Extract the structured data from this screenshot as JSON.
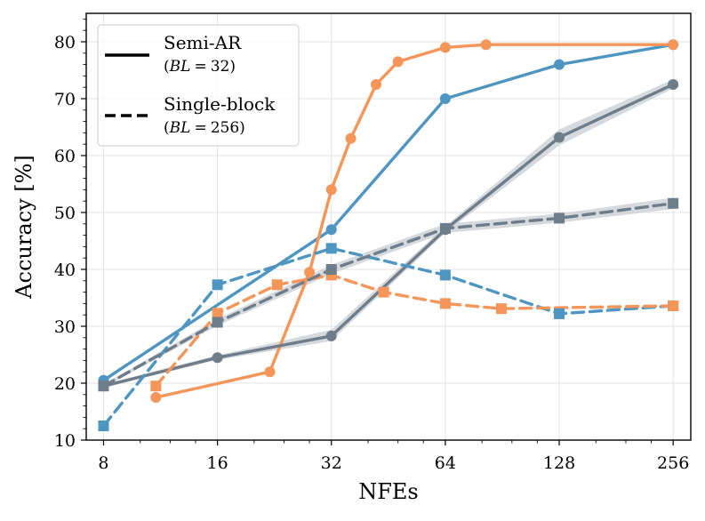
{
  "chart_data": {
    "type": "line",
    "title": "",
    "xlabel": "NFEs",
    "ylabel": "Accuracy [%]",
    "xscale": "log2",
    "xlim": [
      7.2,
      285
    ],
    "ylim": [
      10,
      85
    ],
    "xticks": [
      8,
      16,
      32,
      64,
      128,
      256
    ],
    "xtick_labels": [
      "8",
      "16",
      "32",
      "64",
      "128",
      "256"
    ],
    "yticks": [
      10,
      20,
      30,
      40,
      50,
      60,
      70,
      80
    ],
    "ytick_labels": [
      "10",
      "20",
      "30",
      "40",
      "50",
      "60",
      "70",
      "80"
    ],
    "grid": true,
    "legend": {
      "placement": "top-left",
      "entries": [
        {
          "label": "Semi-AR",
          "sub_label": "(BL = 32)",
          "sub_var": "BL",
          "sub_eq": "=",
          "sub_val": "32)",
          "style": "solid"
        },
        {
          "label": "Single-block",
          "sub_label": "(BL = 256)",
          "sub_var": "BL",
          "sub_eq": "=",
          "sub_val": "256)",
          "style": "dashed"
        }
      ]
    },
    "colors": {
      "orange": "#f4955a",
      "blue": "#4e95c1",
      "gray": "#6f7d8a",
      "band": "#c8cdd3"
    },
    "series": [
      {
        "name": "Semi-AR (blue)",
        "color": "#4e95c1",
        "dash": "solid",
        "marker": "circle",
        "x": [
          8,
          32,
          64,
          128,
          256
        ],
        "y": [
          20.5,
          47,
          70,
          76,
          79.5
        ]
      },
      {
        "name": "Semi-AR (orange)",
        "color": "#f4955a",
        "dash": "solid",
        "marker": "circle",
        "x": [
          11,
          22,
          28,
          32,
          36,
          42,
          48,
          64,
          82,
          256
        ],
        "y": [
          17.5,
          22,
          39.5,
          54,
          63,
          72.5,
          76.5,
          79,
          79.5,
          79.5
        ]
      },
      {
        "name": "Semi-AR (gray)",
        "color": "#6f7d8a",
        "dash": "solid",
        "marker": "circle",
        "x": [
          8,
          16,
          32,
          64,
          128,
          256
        ],
        "y": [
          19.5,
          24.5,
          28.3,
          47,
          63.2,
          72.5
        ],
        "band": [
          [
            19.2,
            19.8
          ],
          [
            24.1,
            24.9
          ],
          [
            27.4,
            29.4
          ],
          [
            46.4,
            47.6
          ],
          [
            61.8,
            64.6
          ],
          [
            71.8,
            73.4
          ]
        ]
      },
      {
        "name": "Single-block (blue)",
        "color": "#4e95c1",
        "dash": "dashed",
        "marker": "square",
        "x": [
          8,
          16,
          32,
          64,
          128,
          256
        ],
        "y": [
          12.5,
          37.3,
          43.7,
          39,
          32.2,
          33.6
        ]
      },
      {
        "name": "Single-block (orange)",
        "color": "#f4955a",
        "dash": "dashed",
        "marker": "square",
        "x": [
          11,
          16,
          23,
          32,
          44,
          64,
          90,
          256
        ],
        "y": [
          19.5,
          32.3,
          37.3,
          39,
          36,
          34,
          33.1,
          33.6
        ]
      },
      {
        "name": "Single-block (gray)",
        "color": "#6f7d8a",
        "dash": "dashed",
        "marker": "square",
        "x": [
          8,
          16,
          32,
          64,
          128,
          256
        ],
        "y": [
          19.5,
          30.7,
          40,
          47.2,
          49,
          51.6
        ],
        "band": [
          [
            19.2,
            19.8
          ],
          [
            30.1,
            31.3
          ],
          [
            39.2,
            40.8
          ],
          [
            46.4,
            48.0
          ],
          [
            48.2,
            49.8
          ],
          [
            50.6,
            52.6
          ]
        ]
      }
    ]
  }
}
